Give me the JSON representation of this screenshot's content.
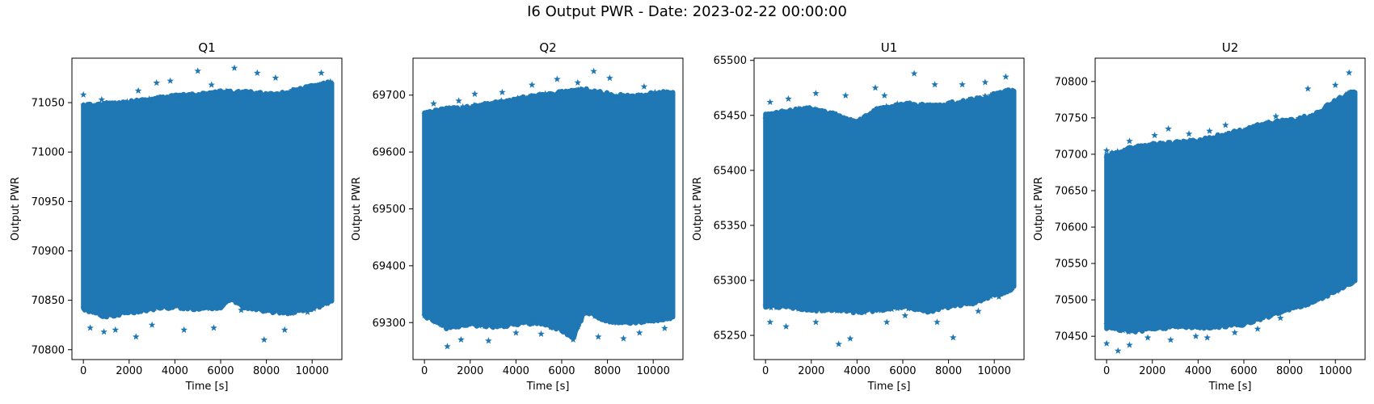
{
  "figure": {
    "suptitle": "I6 Output PWR - Date: 2023-02-22 00:00:00"
  },
  "colors": {
    "series": "#1f77b4",
    "axes": "#000000",
    "background": "#ffffff"
  },
  "chart_data": [
    {
      "type": "scatter",
      "marker": "star",
      "title": "Q1",
      "xlabel": "Time [s]",
      "ylabel": "Output PWR",
      "xlim": [
        -500,
        11300
      ],
      "ylim": [
        70790,
        71095
      ],
      "xticks": [
        0,
        2000,
        4000,
        6000,
        8000,
        10000
      ],
      "yticks": [
        70800,
        70850,
        70900,
        70950,
        71000,
        71050
      ],
      "grid": false,
      "legend": "none",
      "band_x": [
        0,
        10900
      ],
      "band_y": [
        70845,
        71045
      ],
      "upper_edge": [
        [
          0,
          71048
        ],
        [
          1000,
          71050
        ],
        [
          2000,
          71052
        ],
        [
          3000,
          71055
        ],
        [
          4000,
          71058
        ],
        [
          5000,
          71060
        ],
        [
          6000,
          71062
        ],
        [
          7000,
          71062
        ],
        [
          8000,
          71060
        ],
        [
          9000,
          71062
        ],
        [
          10000,
          71068
        ],
        [
          10900,
          71072
        ]
      ],
      "lower_edge": [
        [
          0,
          70840
        ],
        [
          1000,
          70832
        ],
        [
          2000,
          70836
        ],
        [
          3000,
          70840
        ],
        [
          4000,
          70842
        ],
        [
          5000,
          70840
        ],
        [
          6000,
          70842
        ],
        [
          6500,
          70850
        ],
        [
          7000,
          70842
        ],
        [
          8000,
          70838
        ],
        [
          9000,
          70836
        ],
        [
          10000,
          70840
        ],
        [
          10900,
          70848
        ]
      ],
      "outliers": [
        [
          0,
          71058
        ],
        [
          800,
          71053
        ],
        [
          2400,
          71062
        ],
        [
          3200,
          71070
        ],
        [
          3800,
          71072
        ],
        [
          5000,
          71082
        ],
        [
          5600,
          71068
        ],
        [
          6600,
          71085
        ],
        [
          7600,
          71080
        ],
        [
          8400,
          71075
        ],
        [
          10400,
          71080
        ],
        [
          300,
          70822
        ],
        [
          900,
          70818
        ],
        [
          1400,
          70820
        ],
        [
          2300,
          70813
        ],
        [
          3000,
          70825
        ],
        [
          4400,
          70820
        ],
        [
          5700,
          70822
        ],
        [
          6900,
          70840
        ],
        [
          7900,
          70810
        ],
        [
          8800,
          70820
        ],
        [
          9800,
          70838
        ]
      ]
    },
    {
      "type": "scatter",
      "marker": "star",
      "title": "Q2",
      "xlabel": "Time [s]",
      "ylabel": "Output PWR",
      "xlim": [
        -500,
        11300
      ],
      "ylim": [
        69235,
        69765
      ],
      "xticks": [
        0,
        2000,
        4000,
        6000,
        8000,
        10000
      ],
      "yticks": [
        69300,
        69400,
        69500,
        69600,
        69700
      ],
      "grid": false,
      "legend": "none",
      "band_x": [
        0,
        10900
      ],
      "band_y": [
        69330,
        69660
      ],
      "upper_edge": [
        [
          0,
          69670
        ],
        [
          1000,
          69678
        ],
        [
          2000,
          69682
        ],
        [
          3000,
          69688
        ],
        [
          4000,
          69695
        ],
        [
          5000,
          69702
        ],
        [
          6000,
          69708
        ],
        [
          7000,
          69712
        ],
        [
          8000,
          69705
        ],
        [
          9000,
          69700
        ],
        [
          10000,
          69705
        ],
        [
          10900,
          69708
        ]
      ],
      "lower_edge": [
        [
          0,
          69310
        ],
        [
          1000,
          69288
        ],
        [
          2000,
          69295
        ],
        [
          3000,
          69290
        ],
        [
          4000,
          69295
        ],
        [
          5000,
          69298
        ],
        [
          6000,
          69285
        ],
        [
          6500,
          69270
        ],
        [
          7000,
          69318
        ],
        [
          8000,
          69300
        ],
        [
          9000,
          69298
        ],
        [
          10000,
          69302
        ],
        [
          10900,
          69305
        ]
      ],
      "outliers": [
        [
          400,
          69685
        ],
        [
          1500,
          69690
        ],
        [
          2200,
          69702
        ],
        [
          3400,
          69705
        ],
        [
          4700,
          69718
        ],
        [
          5800,
          69728
        ],
        [
          6700,
          69722
        ],
        [
          7400,
          69742
        ],
        [
          8100,
          69730
        ],
        [
          9600,
          69715
        ],
        [
          1000,
          69258
        ],
        [
          1600,
          69270
        ],
        [
          2800,
          69268
        ],
        [
          4000,
          69282
        ],
        [
          5100,
          69280
        ],
        [
          6500,
          69270
        ],
        [
          7600,
          69275
        ],
        [
          8700,
          69272
        ],
        [
          9400,
          69282
        ],
        [
          10500,
          69290
        ]
      ]
    },
    {
      "type": "scatter",
      "marker": "star",
      "title": "U1",
      "xlabel": "Time [s]",
      "ylabel": "Output PWR",
      "xlim": [
        -500,
        11300
      ],
      "ylim": [
        65228,
        65502
      ],
      "xticks": [
        0,
        2000,
        4000,
        6000,
        8000,
        10000
      ],
      "yticks": [
        65250,
        65300,
        65350,
        65400,
        65450,
        65500
      ],
      "grid": false,
      "legend": "none",
      "band_x": [
        0,
        10900
      ],
      "band_y": [
        65295,
        65440
      ],
      "upper_edge": [
        [
          0,
          65452
        ],
        [
          1000,
          65455
        ],
        [
          2000,
          65458
        ],
        [
          3000,
          65452
        ],
        [
          4000,
          65445
        ],
        [
          5000,
          65458
        ],
        [
          6000,
          65462
        ],
        [
          7000,
          65460
        ],
        [
          8000,
          65462
        ],
        [
          9000,
          65465
        ],
        [
          10000,
          65470
        ],
        [
          10900,
          65475
        ]
      ],
      "lower_edge": [
        [
          0,
          65275
        ],
        [
          1000,
          65275
        ],
        [
          2000,
          65272
        ],
        [
          3000,
          65272
        ],
        [
          4000,
          65270
        ],
        [
          5000,
          65272
        ],
        [
          6000,
          65275
        ],
        [
          7000,
          65270
        ],
        [
          8000,
          65275
        ],
        [
          9000,
          65278
        ],
        [
          10000,
          65285
        ],
        [
          10900,
          65292
        ]
      ],
      "outliers": [
        [
          200,
          65462
        ],
        [
          1000,
          65465
        ],
        [
          2200,
          65470
        ],
        [
          3500,
          65468
        ],
        [
          4800,
          65475
        ],
        [
          5200,
          65468
        ],
        [
          6500,
          65488
        ],
        [
          7400,
          65478
        ],
        [
          8600,
          65478
        ],
        [
          9600,
          65480
        ],
        [
          10500,
          65485
        ],
        [
          200,
          65262
        ],
        [
          900,
          65258
        ],
        [
          2200,
          65262
        ],
        [
          3200,
          65242
        ],
        [
          3700,
          65247
        ],
        [
          5300,
          65262
        ],
        [
          6100,
          65268
        ],
        [
          7500,
          65262
        ],
        [
          8200,
          65248
        ],
        [
          9300,
          65272
        ],
        [
          10200,
          65285
        ]
      ]
    },
    {
      "type": "scatter",
      "marker": "star",
      "title": "U2",
      "xlabel": "Time [s]",
      "ylabel": "Output PWR",
      "xlim": [
        -500,
        11300
      ],
      "ylim": [
        70418,
        70832
      ],
      "xticks": [
        0,
        2000,
        4000,
        6000,
        8000,
        10000
      ],
      "yticks": [
        70450,
        70500,
        70550,
        70600,
        70650,
        70700,
        70750,
        70800
      ],
      "grid": false,
      "legend": "none",
      "band_x": [
        0,
        10900
      ],
      "band_y": [
        70490,
        70680
      ],
      "upper_edge": [
        [
          0,
          70700
        ],
        [
          1000,
          70710
        ],
        [
          2000,
          70715
        ],
        [
          3000,
          70718
        ],
        [
          4000,
          70720
        ],
        [
          5000,
          70728
        ],
        [
          6000,
          70735
        ],
        [
          7000,
          70745
        ],
        [
          8000,
          70748
        ],
        [
          9000,
          70755
        ],
        [
          10000,
          70775
        ],
        [
          10900,
          70790
        ]
      ],
      "lower_edge": [
        [
          0,
          70460
        ],
        [
          1000,
          70455
        ],
        [
          2000,
          70458
        ],
        [
          3000,
          70462
        ],
        [
          4000,
          70460
        ],
        [
          5000,
          70462
        ],
        [
          6000,
          70465
        ],
        [
          7000,
          70475
        ],
        [
          8000,
          70485
        ],
        [
          9000,
          70495
        ],
        [
          10000,
          70510
        ],
        [
          10900,
          70525
        ]
      ],
      "outliers": [
        [
          0,
          70705
        ],
        [
          1000,
          70718
        ],
        [
          2100,
          70726
        ],
        [
          2700,
          70735
        ],
        [
          3600,
          70728
        ],
        [
          4500,
          70732
        ],
        [
          5200,
          70740
        ],
        [
          6600,
          70740
        ],
        [
          7400,
          70752
        ],
        [
          8800,
          70790
        ],
        [
          10000,
          70795
        ],
        [
          10600,
          70812
        ],
        [
          0,
          70440
        ],
        [
          500,
          70430
        ],
        [
          1000,
          70438
        ],
        [
          1800,
          70448
        ],
        [
          2800,
          70445
        ],
        [
          3900,
          70450
        ],
        [
          4400,
          70448
        ],
        [
          5600,
          70455
        ],
        [
          6600,
          70460
        ],
        [
          7600,
          70475
        ],
        [
          8900,
          70498
        ]
      ]
    }
  ]
}
